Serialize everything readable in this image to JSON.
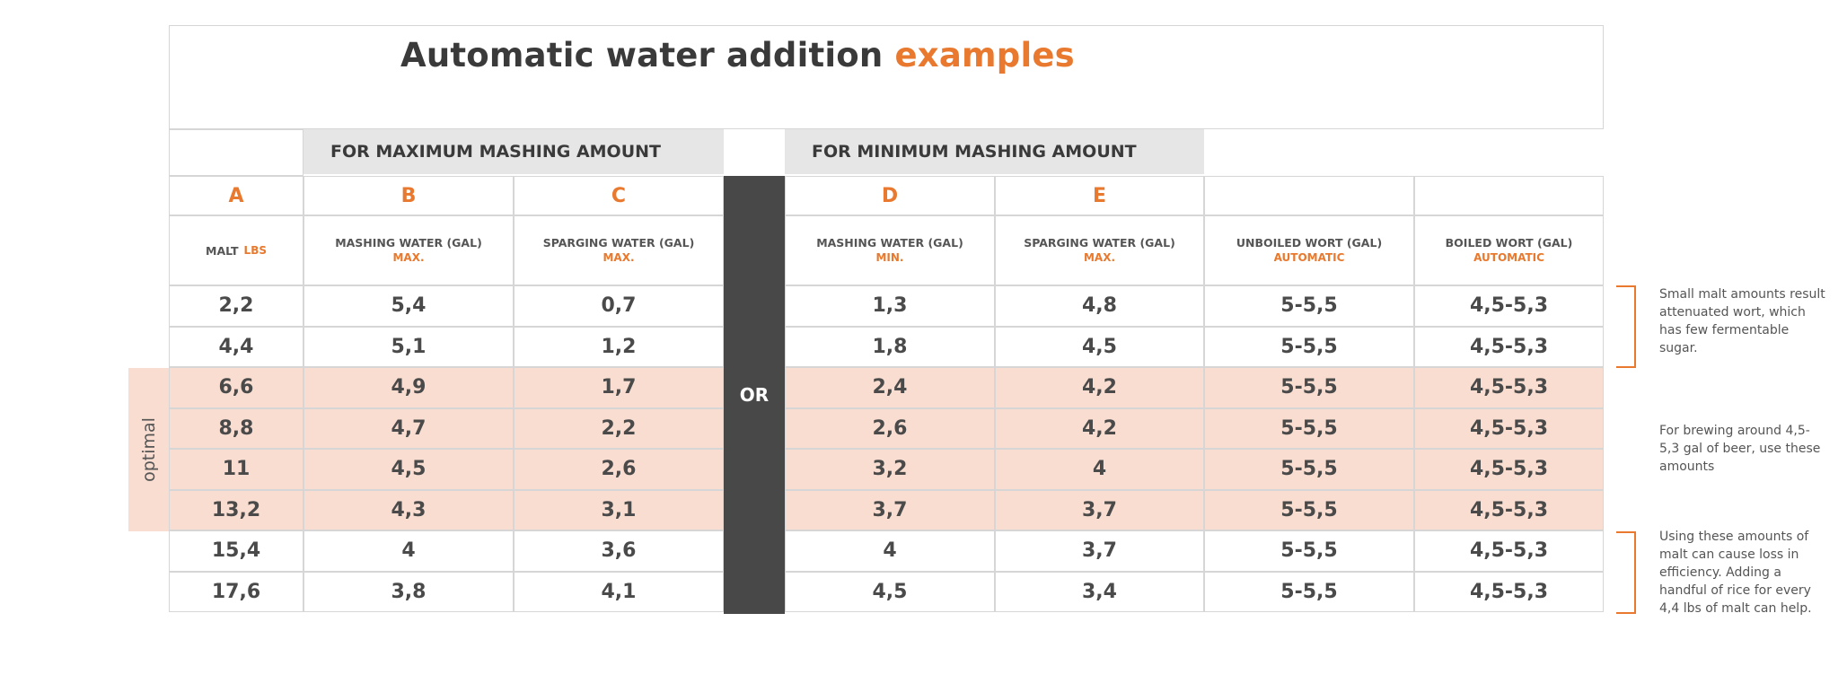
{
  "title": {
    "main": "Automatic water addition",
    "accent": "examples"
  },
  "groups": {
    "max": "FOR MAXIMUM MASHING AMOUNT",
    "min": "FOR MINIMUM MASHING AMOUNT"
  },
  "or_label": "OR",
  "optimal_label": "optimal",
  "letters": [
    "A",
    "B",
    "C",
    "D",
    "E"
  ],
  "headers": [
    {
      "main": "MALT",
      "sub": "LBS"
    },
    {
      "main": "MASHING WATER (GAL)",
      "sub": "MAX."
    },
    {
      "main": "SPARGING WATER  (GAL)",
      "sub": "MAX."
    },
    {
      "main": "MASHING WATER (GAL)",
      "sub": "MIN."
    },
    {
      "main": "SPARGING WATER (GAL)",
      "sub": "MAX."
    },
    {
      "main": "UNBOILED WORT (GAL)",
      "sub": "AUTOMATIC"
    },
    {
      "main": "BOILED WORT (GAL)",
      "sub": "AUTOMATIC"
    }
  ],
  "rows": [
    [
      "2,2",
      "5,4",
      "0,7",
      "1,3",
      "4,8",
      "5-5,5",
      "4,5-5,3"
    ],
    [
      "4,4",
      "5,1",
      "1,2",
      "1,8",
      "4,5",
      "5-5,5",
      "4,5-5,3"
    ],
    [
      "6,6",
      "4,9",
      "1,7",
      "2,4",
      "4,2",
      "5-5,5",
      "4,5-5,3"
    ],
    [
      "8,8",
      "4,7",
      "2,2",
      "2,6",
      "4,2",
      "5-5,5",
      "4,5-5,3"
    ],
    [
      "11",
      "4,5",
      "2,6",
      "3,2",
      "4",
      "5-5,5",
      "4,5-5,3"
    ],
    [
      "13,2",
      "4,3",
      "3,1",
      "3,7",
      "3,7",
      "5-5,5",
      "4,5-5,3"
    ],
    [
      "15,4",
      "4",
      "3,6",
      "4",
      "3,7",
      "5-5,5",
      "4,5-5,3"
    ],
    [
      "17,6",
      "3,8",
      "4,1",
      "4,5",
      "3,4",
      "5-5,5",
      "4,5-5,3"
    ]
  ],
  "notes": {
    "small": "Small malt amounts result attenuated wort, which has few fermentable sugar.",
    "optimal": "For brewing around 4,5-5,3 gal of beer, use these amounts",
    "large": "Using these amounts of malt can cause loss in efficiency. Adding a handful of rice for every 4,4 lbs of malt can help."
  },
  "colors": {
    "accent": "#e8792e",
    "band": "#f8ddd0",
    "or_bar": "#484848",
    "group_header": "#e6e6e6"
  }
}
